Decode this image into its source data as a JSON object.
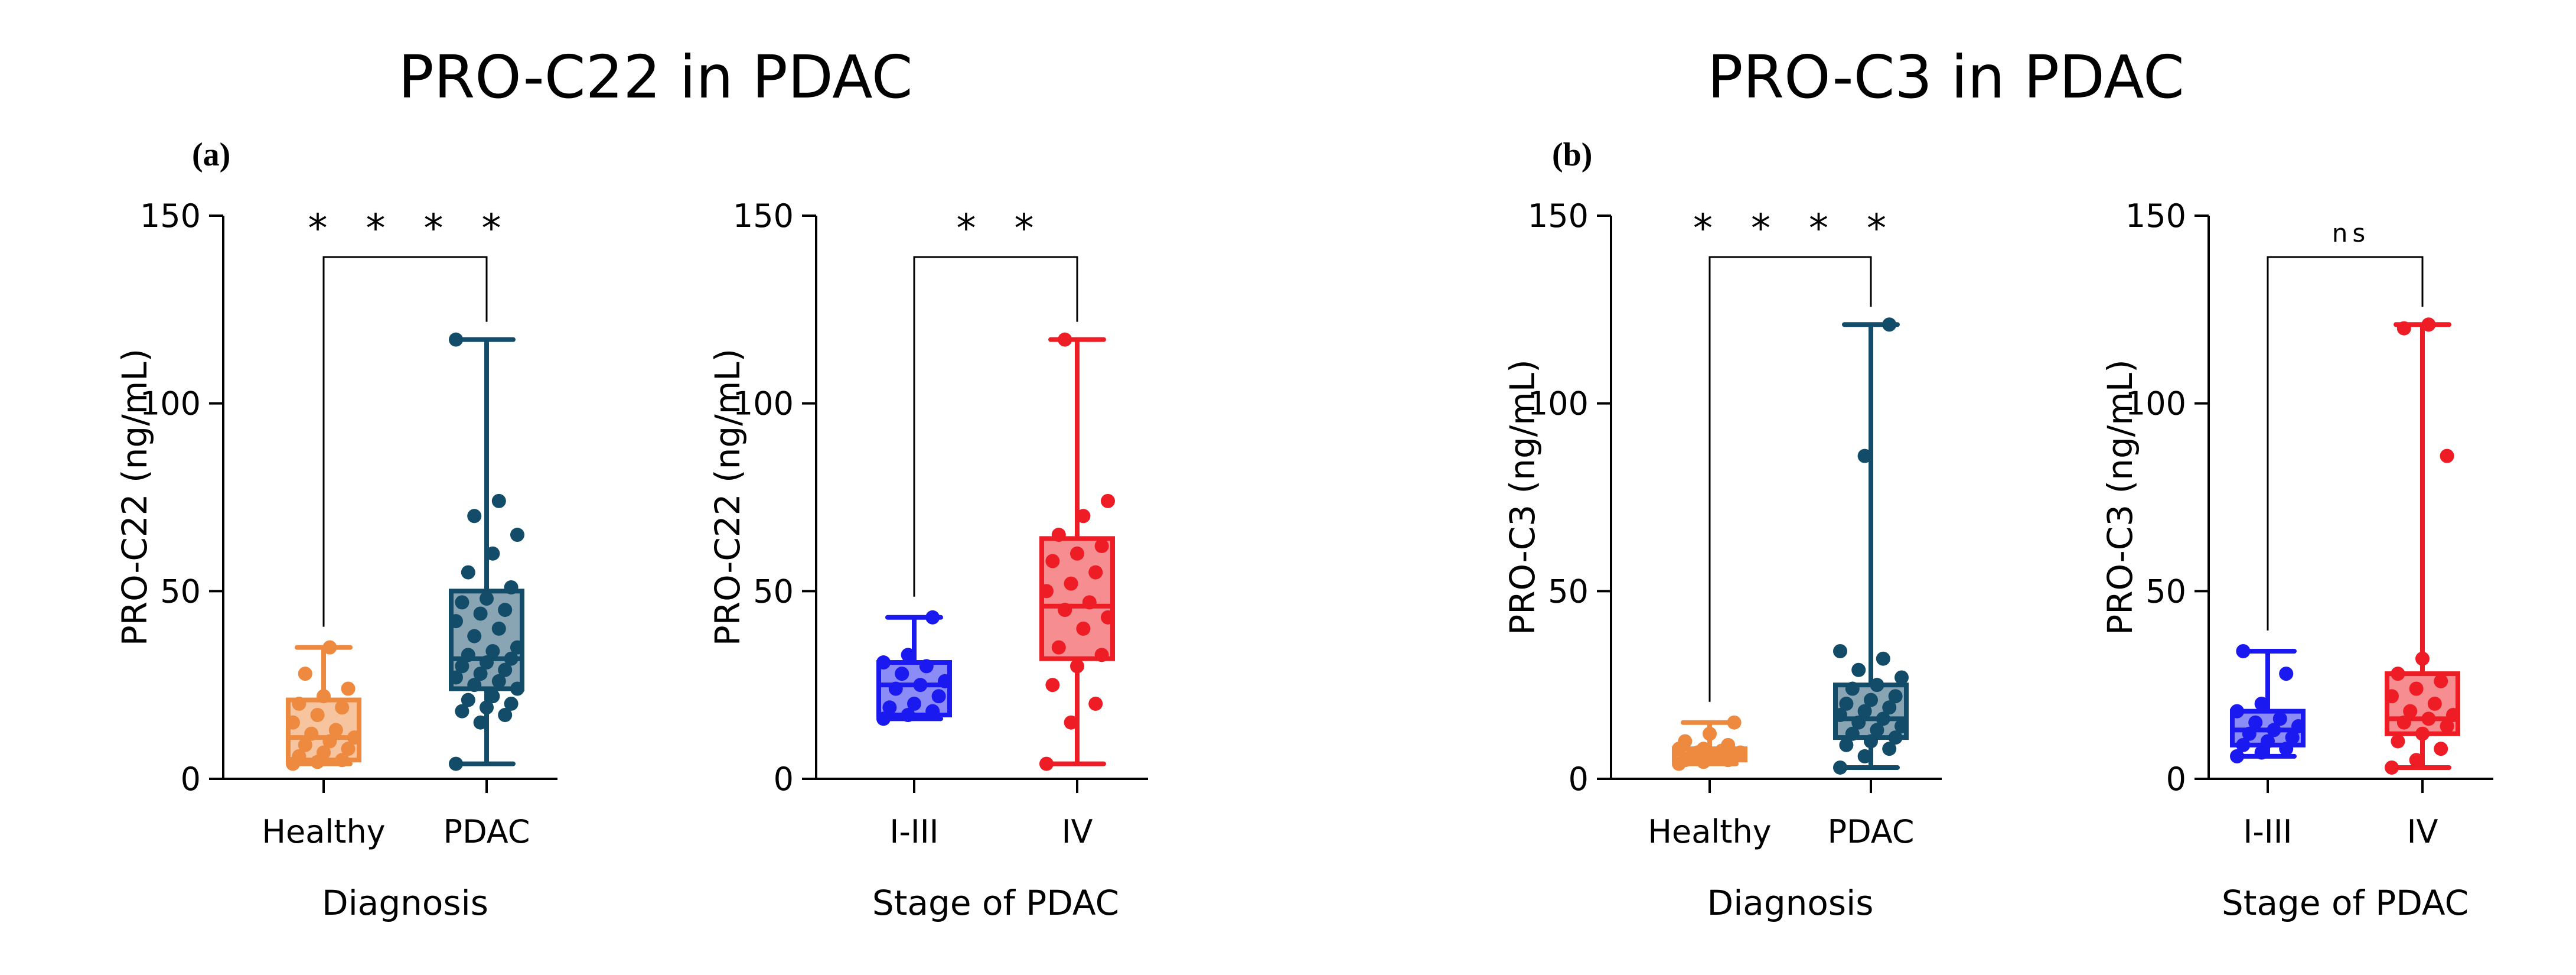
{
  "titles": [
    "PRO-C22 in PDAC",
    "PRO-C3 in PDAC"
  ],
  "panel_labels": [
    "(a)",
    "(b)"
  ],
  "colors": {
    "healthy": "#ED8A3F",
    "pdac": "#134C69",
    "early": "#1A1AF0",
    "late": "#EE1C24",
    "axis": "#000000"
  },
  "chart_data": [
    {
      "type": "box",
      "title": "PRO-C22 in PDAC",
      "panel_label": "(a)",
      "ylabel": "PRO-C22 (ng/mL)",
      "xlabel": "Diagnosis",
      "ylim": [
        0,
        150
      ],
      "yticks": [
        0,
        50,
        100,
        150
      ],
      "significance": "* * * *",
      "groups": [
        {
          "name": "Healthy",
          "color_key": "healthy",
          "min": 4,
          "q1": 5,
          "median": 11,
          "q3": 21,
          "max": 35,
          "points": [
            4,
            4.5,
            5,
            6,
            7,
            8,
            9,
            10,
            11,
            12,
            13,
            15,
            17,
            19,
            20,
            22,
            24,
            28,
            35
          ]
        },
        {
          "name": "PDAC",
          "color_key": "pdac",
          "min": 4,
          "q1": 24,
          "median": 32,
          "q3": 50,
          "max": 117,
          "points": [
            4,
            15,
            17,
            18,
            19,
            20,
            21,
            22,
            24,
            25,
            26,
            27,
            28,
            29,
            30,
            31,
            32,
            33,
            34,
            35,
            38,
            40,
            42,
            44,
            45,
            47,
            48,
            51,
            55,
            60,
            65,
            70,
            74,
            117
          ]
        }
      ]
    },
    {
      "type": "box",
      "ylabel": "PRO-C22 (ng/mL)",
      "xlabel": "Stage of PDAC",
      "ylim": [
        0,
        150
      ],
      "yticks": [
        0,
        50,
        100,
        150
      ],
      "significance": "* *",
      "groups": [
        {
          "name": "I-III",
          "color_key": "early",
          "min": 16,
          "q1": 17,
          "median": 25,
          "q3": 31,
          "max": 43,
          "points": [
            16,
            17,
            18,
            19,
            20,
            22,
            24,
            25,
            26,
            28,
            30,
            31,
            33,
            43
          ]
        },
        {
          "name": "IV",
          "color_key": "late",
          "min": 4,
          "q1": 32,
          "median": 46,
          "q3": 64,
          "max": 117,
          "points": [
            4,
            15,
            20,
            25,
            30,
            33,
            35,
            40,
            43,
            45,
            47,
            50,
            52,
            55,
            58,
            60,
            62,
            65,
            70,
            74,
            117
          ]
        }
      ]
    },
    {
      "type": "box",
      "title": "PRO-C3 in PDAC",
      "panel_label": "(b)",
      "ylabel": "PRO-C3 (ng/mL)",
      "xlabel": "Diagnosis",
      "ylim": [
        0,
        150
      ],
      "yticks": [
        0,
        50,
        100,
        150
      ],
      "significance": "* * * *",
      "groups": [
        {
          "name": "Healthy",
          "color_key": "healthy",
          "min": 4,
          "q1": 5,
          "median": 6.5,
          "q3": 8,
          "max": 15,
          "points": [
            4,
            4.5,
            5,
            5,
            5.5,
            6,
            6,
            6.5,
            7,
            7,
            7.5,
            8,
            8,
            9,
            10,
            12,
            15
          ]
        },
        {
          "name": "PDAC",
          "color_key": "pdac",
          "min": 3,
          "q1": 11,
          "median": 16,
          "q3": 25,
          "max": 121,
          "points": [
            3,
            6,
            8,
            9,
            10,
            11,
            12,
            13,
            14,
            15,
            16,
            17,
            18,
            19,
            20,
            21,
            22,
            24,
            25,
            27,
            29,
            32,
            34,
            86,
            121
          ]
        }
      ]
    },
    {
      "type": "box",
      "ylabel": "PRO-C3 (ng/mL)",
      "xlabel": "Stage of PDAC",
      "ylim": [
        0,
        150
      ],
      "yticks": [
        0,
        50,
        100,
        150
      ],
      "significance": "ns",
      "groups": [
        {
          "name": "I-III",
          "color_key": "early",
          "min": 6,
          "q1": 9,
          "median": 13,
          "q3": 18,
          "max": 34,
          "points": [
            6,
            7,
            8,
            9,
            10,
            11,
            12,
            13,
            14,
            15,
            16,
            18,
            20,
            28,
            34
          ]
        },
        {
          "name": "IV",
          "color_key": "late",
          "min": 3,
          "q1": 12,
          "median": 16,
          "q3": 28,
          "max": 121,
          "points": [
            3,
            5,
            8,
            10,
            12,
            14,
            15,
            16,
            17,
            18,
            20,
            22,
            24,
            26,
            28,
            32,
            86,
            120,
            121
          ]
        }
      ]
    }
  ]
}
